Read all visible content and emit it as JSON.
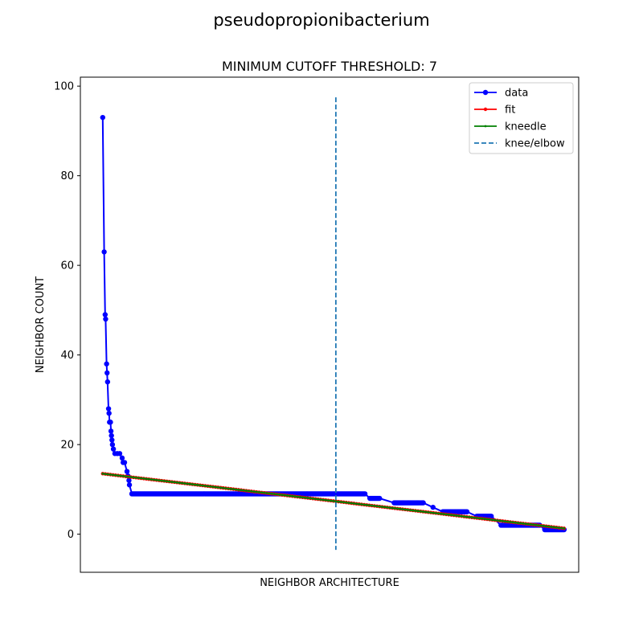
{
  "figure": {
    "suptitle": "pseudopropionibacterium"
  },
  "chart_data": {
    "type": "line",
    "title": "MINIMUM CUTOFF THRESHOLD: 7",
    "xlabel": "NEIGHBOR ARCHITECTURE",
    "ylabel": "NEIGHBOR COUNT",
    "ylim": [
      -8.5,
      102
    ],
    "yticks": [
      0,
      20,
      40,
      60,
      80,
      100
    ],
    "xlim": [
      -4.6,
      98
    ],
    "x_tick_labels_shown": false,
    "legend": {
      "placement": "top-right",
      "entries": [
        "data",
        "fit",
        "kneedle",
        "knee/elbow"
      ]
    },
    "knee_x": 48,
    "knee_line_yrange": [
      -3.5,
      97.5
    ],
    "series": [
      {
        "name": "data",
        "color": "#0000ff",
        "marker": "circle",
        "x": [
          0,
          0.3,
          0.5,
          0.6,
          0.8,
          0.9,
          1,
          1.2,
          1.3,
          1.4,
          1.6,
          1.7,
          1.8,
          1.9,
          2,
          2.2,
          2.5,
          3,
          3.5,
          4,
          4.2,
          4.5,
          5,
          5.2,
          5.4,
          5.5,
          6,
          10,
          20,
          30,
          40,
          45,
          50,
          54,
          55,
          57,
          60,
          65,
          66,
          68,
          70,
          72,
          73,
          75,
          77,
          78,
          80,
          82,
          85,
          88,
          90,
          91,
          93,
          95
        ],
        "values": [
          93,
          63,
          49,
          48,
          38,
          36,
          34,
          28,
          27,
          25,
          25,
          23,
          22,
          21,
          20,
          19,
          18,
          18,
          18,
          17,
          16,
          16,
          14,
          13,
          12,
          11,
          9,
          9,
          9,
          9,
          9,
          9,
          9,
          9,
          8,
          8,
          7,
          7,
          7,
          6,
          5,
          5,
          5,
          5,
          4,
          4,
          4,
          2,
          2,
          2,
          2,
          1,
          1,
          1
        ]
      },
      {
        "name": "fit",
        "color": "#ff0000",
        "marker": "point",
        "x": [
          0,
          95
        ],
        "values": [
          13.5,
          1.3
        ]
      },
      {
        "name": "kneedle",
        "color": "#008000",
        "marker": "point",
        "x": [
          0,
          95
        ],
        "values": [
          13.5,
          1.3
        ]
      }
    ]
  }
}
